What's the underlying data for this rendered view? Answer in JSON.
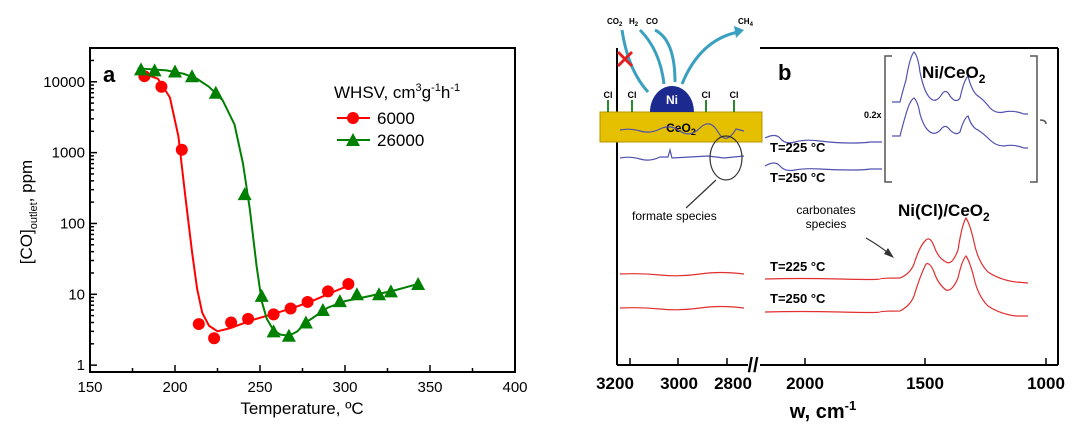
{
  "chart_data": [
    {
      "type": "line",
      "panel_label": "a",
      "xlabel": "Temperature, ºC",
      "ylabel_main": "[CO]",
      "ylabel_sub": "outlet",
      "ylabel_tail": ", ppm",
      "xlim": [
        150,
        400
      ],
      "ylim": [
        0.8,
        30000
      ],
      "yscale": "log",
      "x_ticks": [
        150,
        200,
        250,
        300,
        350,
        400
      ],
      "y_ticks": [
        {
          "v": 1,
          "label": "1"
        },
        {
          "v": 10,
          "label": "10"
        },
        {
          "v": 100,
          "label": "100"
        },
        {
          "v": 1000,
          "label": "1000"
        },
        {
          "v": 10000,
          "label": "10000"
        }
      ],
      "legend_title_main": "WHSV, cm",
      "legend_title_rest": "g",
      "legend_title_sup1": "3",
      "legend_title_sup2": "-1",
      "legend_title_h": "h",
      "legend_title_sup3": "-1",
      "series": [
        {
          "name": "6000",
          "color": "#ff0000",
          "marker": "circle",
          "x": [
            182,
            192,
            204,
            214,
            223,
            233,
            243,
            258,
            268,
            278,
            290,
            302
          ],
          "y": [
            12000,
            8500,
            1100,
            3.8,
            2.4,
            4.0,
            4.5,
            5.2,
            6.3,
            7.8,
            11,
            14
          ],
          "fit_x": [
            178,
            190,
            197,
            202,
            206,
            210,
            213,
            216,
            220,
            225,
            232,
            245,
            258,
            270,
            282,
            293,
            303
          ],
          "fit_y": [
            14000,
            11000,
            6000,
            1700,
            250,
            40,
            12,
            5.5,
            3.6,
            3.0,
            3.3,
            4.3,
            5.3,
            6.5,
            8.3,
            10.8,
            13.5
          ]
        },
        {
          "name": "26000",
          "color": "#008000",
          "marker": "triangle",
          "x": [
            180,
            188,
            200,
            210,
            224,
            241,
            251,
            258,
            267,
            277,
            287,
            297,
            307,
            320,
            327,
            343
          ],
          "y": [
            15000,
            14500,
            14000,
            12000,
            7000,
            260,
            9.5,
            3.0,
            2.6,
            4.0,
            6.0,
            8.0,
            10,
            10,
            11,
            14
          ],
          "fit_x": [
            178,
            195,
            205,
            213,
            220,
            228,
            235,
            240,
            244,
            248,
            251,
            254,
            258,
            262,
            267,
            272,
            277,
            283,
            290,
            300,
            315,
            330,
            343
          ],
          "fit_y": [
            15500,
            14500,
            13000,
            11000,
            8500,
            5500,
            2500,
            700,
            160,
            25,
            8,
            4.5,
            3.1,
            2.7,
            2.6,
            3.0,
            4.0,
            5.0,
            6.5,
            8.0,
            9.5,
            11.5,
            14
          ]
        }
      ]
    },
    {
      "type": "line",
      "panel_label": "b",
      "xlabel_main": "w, cm",
      "xlabel_sup": "-1",
      "x_tick_labels_left": [
        "3200",
        "3000",
        "2800"
      ],
      "x_tick_labels_right": [
        "2000",
        "1500",
        "1000"
      ],
      "axis_break_glyph": "//",
      "annotations": {
        "ni_ceo2_main": "Ni/CeO",
        "ni_ceo2_sub": "2",
        "ni_cl_ceo2_main": "Ni(Cl)/CeO",
        "ni_cl_ceo2_sub": "2",
        "scale_factor": "0.2x",
        "blue_t225": "T=225 °C",
        "blue_t250": "T=250 °C",
        "red_t225": "T=225 °C",
        "red_t250": "T=250 °C",
        "formate": "formate species",
        "carbonates_1": "carbonates",
        "carbonates_2": "species"
      },
      "colors": {
        "ni_ceo2": "#5050b0",
        "ni_cl_ceo2": "#e03030"
      },
      "inset": {
        "gas_co2_main": "CO",
        "gas_co2_sub": "2",
        "gas_h2_main": "H",
        "gas_h2_sub": "2",
        "gas_co": "CO",
        "gas_ch4_main": "CH",
        "gas_ch4_sub": "4",
        "particle": "Ni",
        "support_main": "CeO",
        "support_sub": "2",
        "chlorine": "Cl"
      }
    }
  ]
}
